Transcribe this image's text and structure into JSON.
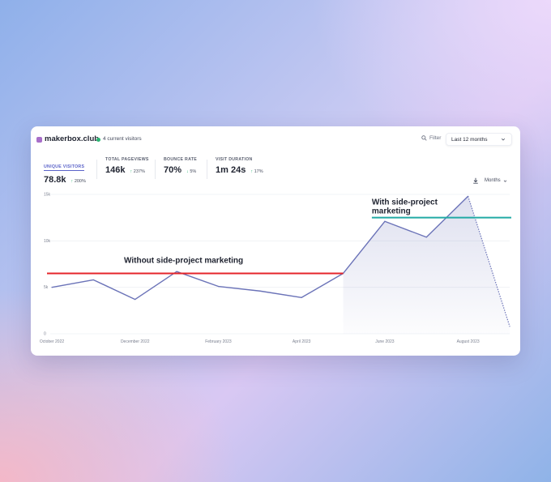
{
  "header": {
    "site_name": "makerbox.club",
    "live_visitors": "4 current visitors",
    "filter_label": "Filter",
    "date_range": "Last 12 months",
    "interval": "Months"
  },
  "metrics": [
    {
      "label": "UNIQUE VISITORS",
      "value": "78.8k",
      "change": "200%",
      "direction": "up"
    },
    {
      "label": "TOTAL PAGEVIEWS",
      "value": "146k",
      "change": "237%",
      "direction": "up"
    },
    {
      "label": "BOUNCE RATE",
      "value": "70%",
      "change": "5%",
      "direction": "down"
    },
    {
      "label": "VISIT DURATION",
      "value": "1m 24s",
      "change": "17%",
      "direction": "up"
    }
  ],
  "colors": {
    "line": "#6b73b8",
    "accent": "#5b63c9",
    "without_marker": "#e5252a",
    "with_marker": "#21aaa5",
    "live_dot": "#2bb673",
    "site_icon": "#a86fc9"
  },
  "chart_data": {
    "type": "line",
    "y_ticks": [
      "15k",
      "10k",
      "5k",
      "0"
    ],
    "ylim": [
      0,
      15000
    ],
    "x_tick_labels": [
      "October 2022",
      "December 2022",
      "February 2023",
      "April 2023",
      "June 2023",
      "August 2023"
    ],
    "x": [
      "2022-10",
      "2022-11",
      "2022-12",
      "2023-01",
      "2023-02",
      "2023-03",
      "2023-04",
      "2023-05",
      "2023-06",
      "2023-07",
      "2023-08",
      "2023-09"
    ],
    "values": [
      5000,
      5800,
      3700,
      6700,
      5100,
      4600,
      3900,
      6500,
      12100,
      10400,
      14800,
      800
    ],
    "partial_last_point": true,
    "annotations": [
      {
        "text": "Without side-project marketing",
        "y": 6500,
        "x_from": "2022-10",
        "x_to": "2023-05",
        "color": "without_marker"
      },
      {
        "text": "With side-project marketing",
        "y": 12500,
        "x_from": "2023-06",
        "x_to": "2023-09",
        "color": "with_marker"
      }
    ]
  }
}
